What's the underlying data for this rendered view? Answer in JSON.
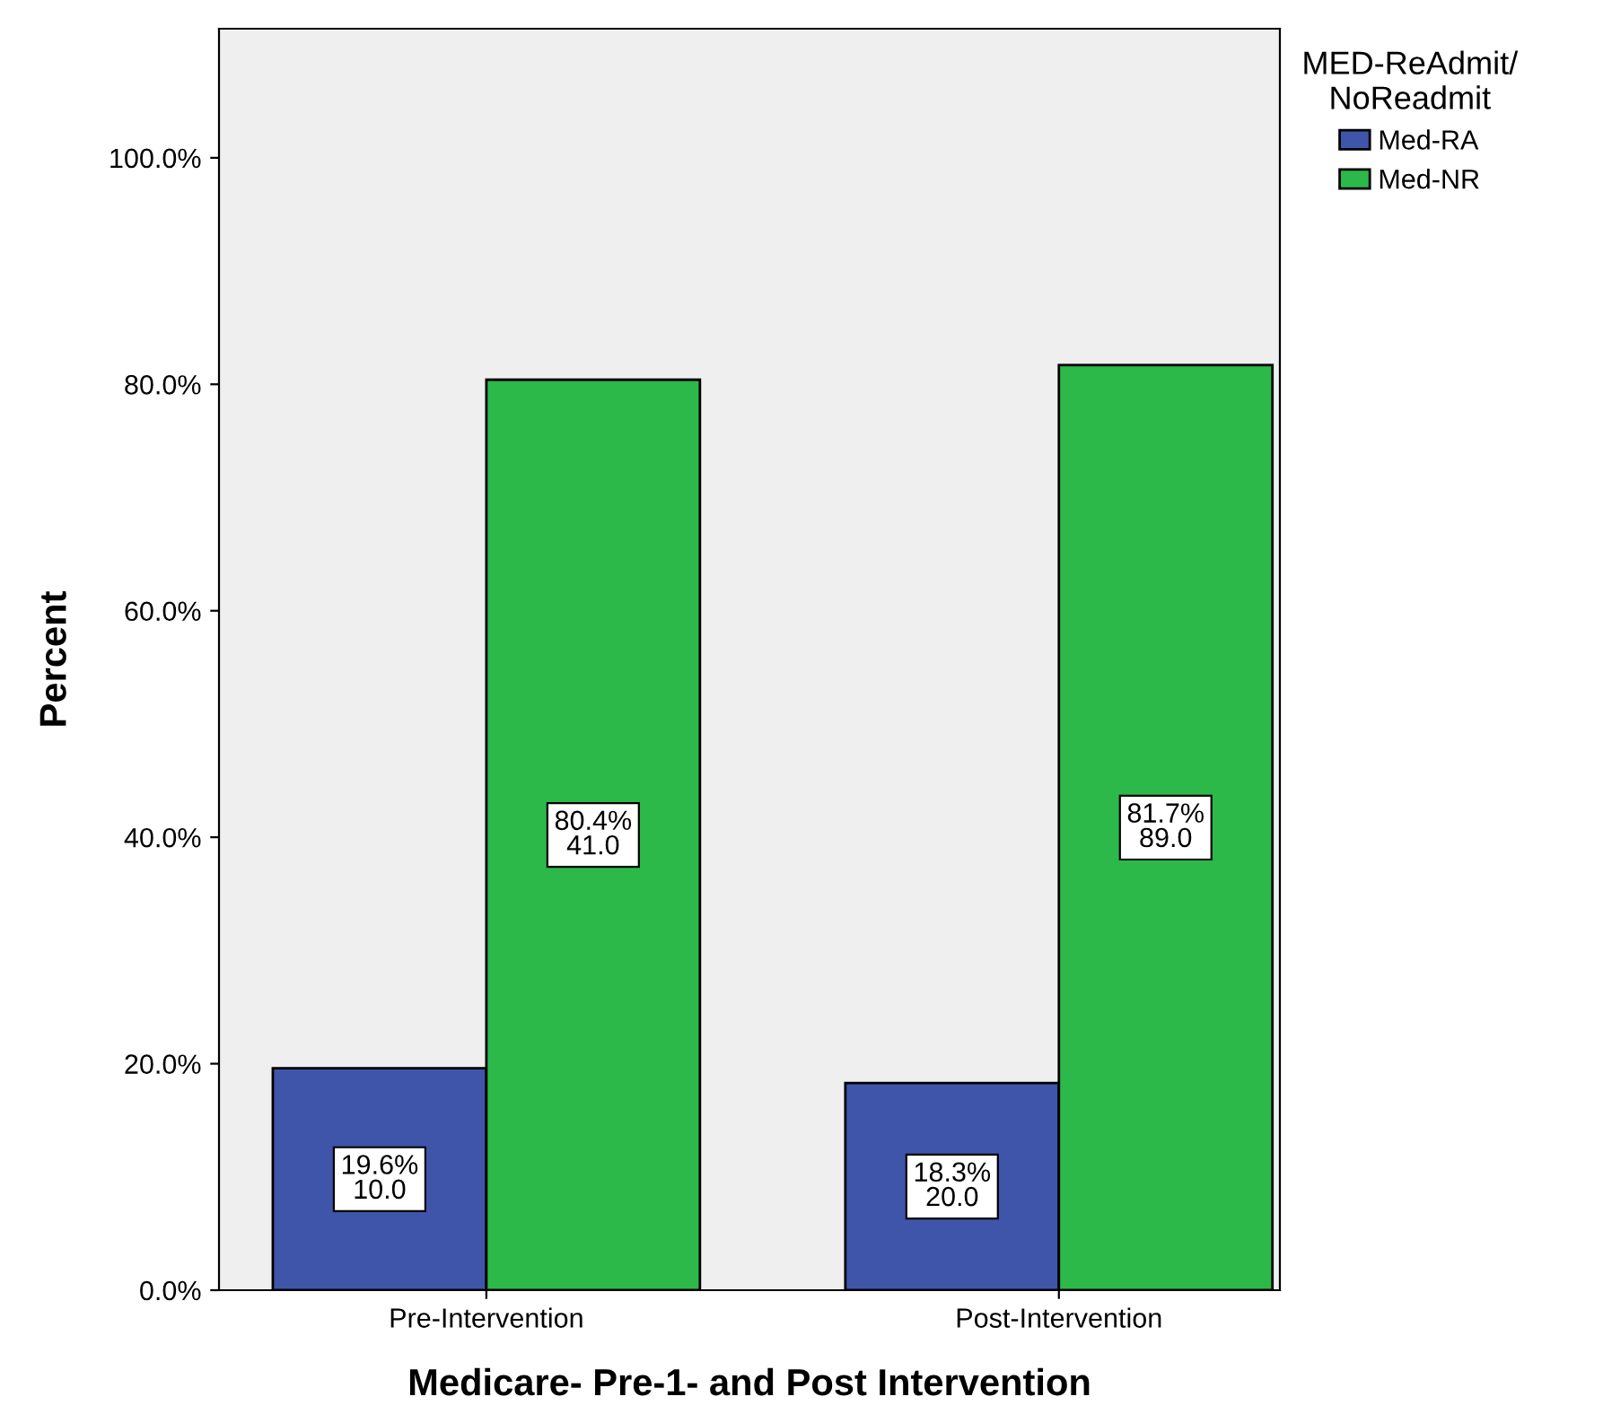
{
  "chart_data": {
    "type": "bar",
    "xlabel": "Medicare- Pre-1- and Post Intervention",
    "ylabel": "Percent",
    "legend_title": "MED-ReAdmit/\nNoReadmit",
    "categories": [
      "Pre-Intervention",
      "Post-Intervention"
    ],
    "series": [
      {
        "name": "Med-RA",
        "color": "#3e55a9",
        "values": [
          19.6,
          18.3
        ],
        "value_labels": [
          "19.6%\n10.0",
          "18.3%\n20.0"
        ]
      },
      {
        "name": "Med-NR",
        "color": "#2db84a",
        "values": [
          80.4,
          81.7
        ],
        "value_labels": [
          "80.4%\n41.0",
          "81.7%\n89.0"
        ]
      }
    ],
    "ylim": [
      0,
      111.4
    ],
    "yticks": [
      {
        "value": 0,
        "label": "0.0%"
      },
      {
        "value": 20,
        "label": "20.0%"
      },
      {
        "value": 40,
        "label": "40.0%"
      },
      {
        "value": 60,
        "label": "60.0%"
      },
      {
        "value": 80,
        "label": "80.0%"
      },
      {
        "value": 100,
        "label": "100.0%"
      }
    ],
    "grid": false,
    "legend": "top right"
  }
}
